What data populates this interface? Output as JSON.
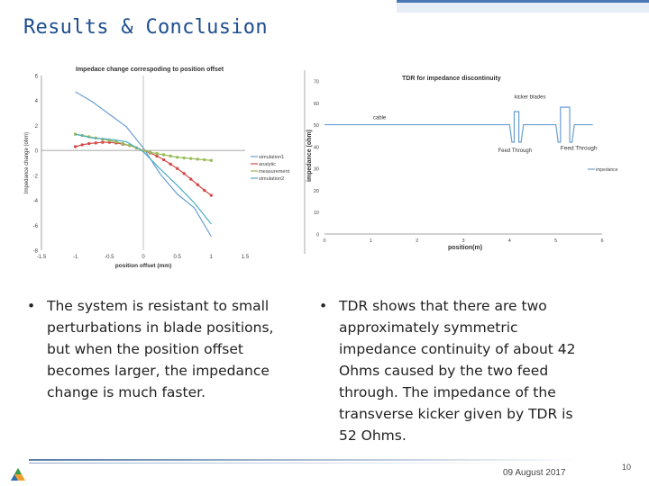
{
  "slide": {
    "title": "Results & Conclusion",
    "bullets": [
      "The system is resistant to small perturbations in blade positions, but when the position offset becomes larger, the impedance change is much faster.",
      "TDR shows that there are two approximately symmetric impedance continuity of about 42 Ohms caused by the two feed through. The impedance of the transverse kicker given by TDR is 52 Ohms."
    ],
    "bullet_symbol": "•",
    "footer_date": "09 August 2017",
    "page_number": "10",
    "colors": {
      "title": "#1d4e8f",
      "text": "#222222",
      "top_bar": "#4a78b5"
    },
    "logo_icon": "triangle-logo-icon"
  },
  "chart_data": [
    {
      "type": "line",
      "title": "Impedace change correspoding to position offset",
      "xlabel": "position offset (mm)",
      "ylabel": "Impedance change (ohm)",
      "xlim": [
        -1.5,
        1.5
      ],
      "ylim": [
        -8,
        6
      ],
      "xticks": [
        "-1.5",
        "-1",
        "-0.5",
        "0",
        "0.5",
        "1",
        "1.5"
      ],
      "yticks": [
        "6",
        "4",
        "2",
        "0",
        "-2",
        "-4",
        "-6",
        "-8"
      ],
      "legend_position": "right",
      "series": [
        {
          "name": "simulation1",
          "color": "#6a9fd4",
          "x": [
            -1,
            -0.75,
            -0.5,
            -0.25,
            0,
            0.25,
            0.5,
            0.75,
            1
          ],
          "y": [
            4.7,
            3.9,
            2.9,
            1.9,
            0.2,
            -1.9,
            -3.5,
            -4.6,
            -6.9
          ]
        },
        {
          "name": "analytic",
          "color": "#d44a4a",
          "marker": "circle",
          "x": [
            -1,
            -0.9,
            -0.8,
            -0.7,
            -0.6,
            -0.5,
            -0.4,
            -0.3,
            -0.2,
            -0.1,
            0,
            0.1,
            0.2,
            0.3,
            0.4,
            0.5,
            0.6,
            0.7,
            0.8,
            0.9,
            1
          ],
          "y": [
            0.3,
            0.45,
            0.55,
            0.6,
            0.65,
            0.65,
            0.6,
            0.5,
            0.4,
            0.2,
            0,
            -0.2,
            -0.45,
            -0.75,
            -1.1,
            -1.45,
            -1.85,
            -2.3,
            -2.75,
            -3.2,
            -3.6
          ]
        },
        {
          "name": "measurement",
          "color": "#9bbb59",
          "marker": "circle",
          "x": [
            -1,
            -0.9,
            -0.8,
            -0.7,
            -0.6,
            -0.5,
            -0.4,
            -0.3,
            -0.2,
            -0.1,
            0,
            0.1,
            0.2,
            0.3,
            0.4,
            0.5,
            0.6,
            0.7,
            0.8,
            0.9,
            1
          ],
          "y": [
            1.3,
            1.2,
            1.1,
            1.0,
            0.9,
            0.8,
            0.7,
            0.55,
            0.4,
            0.2,
            0,
            -0.15,
            -0.25,
            -0.35,
            -0.45,
            -0.55,
            -0.6,
            -0.65,
            -0.7,
            -0.75,
            -0.8
          ]
        },
        {
          "name": "simulation2",
          "color": "#4bacc6",
          "x": [
            -1,
            -0.75,
            -0.5,
            -0.25,
            0,
            0.25,
            0.5,
            0.75,
            1
          ],
          "y": [
            1.3,
            1.0,
            0.9,
            0.7,
            -0.1,
            -1.5,
            -2.8,
            -4.2,
            -5.9
          ]
        }
      ]
    },
    {
      "type": "line",
      "title": "TDR for impedance discontinuity",
      "xlabel": "position(m)",
      "ylabel": "impedance (ohm)",
      "xlim": [
        0,
        6
      ],
      "ylim": [
        0,
        70
      ],
      "xticks": [
        "0",
        "1",
        "2",
        "3",
        "4",
        "5",
        "6"
      ],
      "yticks": [
        "70",
        "60",
        "50",
        "40",
        "30",
        "20",
        "10",
        "0"
      ],
      "legend_position": "right",
      "annotations": [
        "cable",
        "kicker blades",
        "Feed Through",
        "Feed Through"
      ],
      "series": [
        {
          "name": "impedance",
          "color": "#6a9fd4",
          "x": [
            0,
            4.0,
            4.05,
            4.1,
            4.1,
            4.2,
            4.2,
            4.25,
            4.3,
            5.0,
            5.05,
            5.1,
            5.1,
            5.3,
            5.3,
            5.35,
            5.4,
            5.8
          ],
          "y": [
            50,
            50,
            42,
            42,
            56,
            56,
            42,
            42,
            50,
            50,
            42,
            42,
            58,
            58,
            42,
            42,
            50,
            50
          ]
        }
      ]
    }
  ]
}
